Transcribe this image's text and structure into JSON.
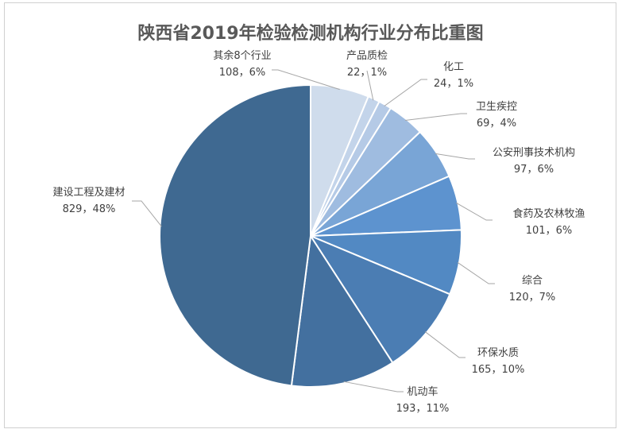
{
  "chart_data": {
    "type": "pie",
    "title": "陕西省2019年检验检测机构行业分布比重图",
    "start_at_top": true,
    "direction": "clockwise",
    "slices": [
      {
        "name": "其余8个行业",
        "value": 108,
        "pct": "6%",
        "color": "#cfdcec"
      },
      {
        "name": "产品质检",
        "value": 22,
        "pct": "1%",
        "color": "#c3d4ea"
      },
      {
        "name": "化工",
        "value": 24,
        "pct": "1%",
        "color": "#b5cae6"
      },
      {
        "name": "卫生疾控",
        "value": 69,
        "pct": "4%",
        "color": "#9fbce0"
      },
      {
        "name": "公安刑事技术机构",
        "value": 97,
        "pct": "6%",
        "color": "#79a5d6"
      },
      {
        "name": "食药及农林牧渔",
        "value": 101,
        "pct": "6%",
        "color": "#5d93cf"
      },
      {
        "name": "综合",
        "value": 120,
        "pct": "7%",
        "color": "#5289c3"
      },
      {
        "name": "环保水质",
        "value": 165,
        "pct": "10%",
        "color": "#4b7db3"
      },
      {
        "name": "机动车",
        "value": 193,
        "pct": "11%",
        "color": "#43709f"
      },
      {
        "name": "建设工程及建材",
        "value": 829,
        "pct": "48%",
        "color": "#3f6991"
      }
    ],
    "separator": "，",
    "leader_color": "#a6a6a6"
  }
}
